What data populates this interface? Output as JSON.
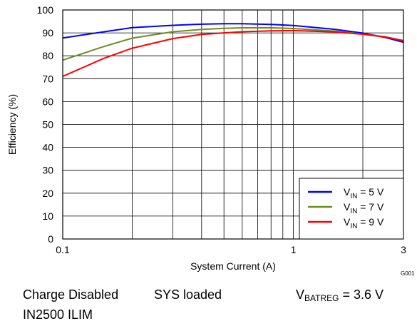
{
  "chart_data": {
    "type": "line",
    "xlabel": "System Current (A)",
    "ylabel": "Efficiency (%)",
    "x_scale": "log",
    "xlim": [
      0.1,
      3
    ],
    "ylim": [
      0,
      100
    ],
    "x_ticks": [
      0.1,
      1,
      3
    ],
    "x_tick_labels": [
      "0.1",
      "1",
      "3"
    ],
    "y_ticks": [
      0,
      10,
      20,
      30,
      40,
      50,
      60,
      70,
      80,
      90,
      100
    ],
    "grid": true,
    "legend_position": "bottom-right",
    "figure_code": "G001",
    "series": [
      {
        "name": "VIN = 5 V",
        "legend": {
          "main": "V",
          "sub": "IN",
          "rest": " = 5 V"
        },
        "color": "#0000ff",
        "x": [
          0.1,
          0.2,
          0.3,
          0.4,
          0.5,
          0.6,
          0.8,
          1.0,
          1.5,
          2.0,
          2.5,
          3.0
        ],
        "y": [
          87.8,
          92.3,
          93.3,
          93.8,
          94.0,
          94.0,
          93.7,
          93.2,
          91.6,
          89.9,
          88.0,
          85.9
        ]
      },
      {
        "name": "VIN = 7 V",
        "legend": {
          "main": "V",
          "sub": "IN",
          "rest": " = 7 V"
        },
        "color": "#6b8e23",
        "x": [
          0.1,
          0.15,
          0.2,
          0.3,
          0.4,
          0.5,
          0.6,
          0.8,
          1.0,
          1.5,
          2.0,
          2.5,
          3.0
        ],
        "y": [
          78.1,
          84.0,
          87.7,
          90.5,
          91.5,
          92.0,
          92.2,
          92.2,
          91.9,
          90.8,
          89.5,
          88.3,
          86.7
        ]
      },
      {
        "name": "VIN = 9 V",
        "legend": {
          "main": "V",
          "sub": "IN",
          "rest": " = 9 V"
        },
        "color": "#ff0000",
        "x": [
          0.1,
          0.15,
          0.2,
          0.3,
          0.4,
          0.5,
          0.6,
          0.8,
          1.0,
          1.5,
          2.0,
          2.5,
          3.0
        ],
        "y": [
          71.0,
          78.8,
          83.3,
          87.5,
          89.3,
          90.0,
          90.5,
          90.9,
          91.0,
          90.4,
          89.4,
          88.2,
          86.5
        ]
      }
    ]
  },
  "conditions": {
    "charge": "Charge Disabled",
    "sys": "SYS loaded",
    "vbatreg": {
      "main": "V",
      "sub": "BATREG",
      "rest": " = 3.6 V"
    },
    "ilim": "IN2500 ILIM"
  }
}
